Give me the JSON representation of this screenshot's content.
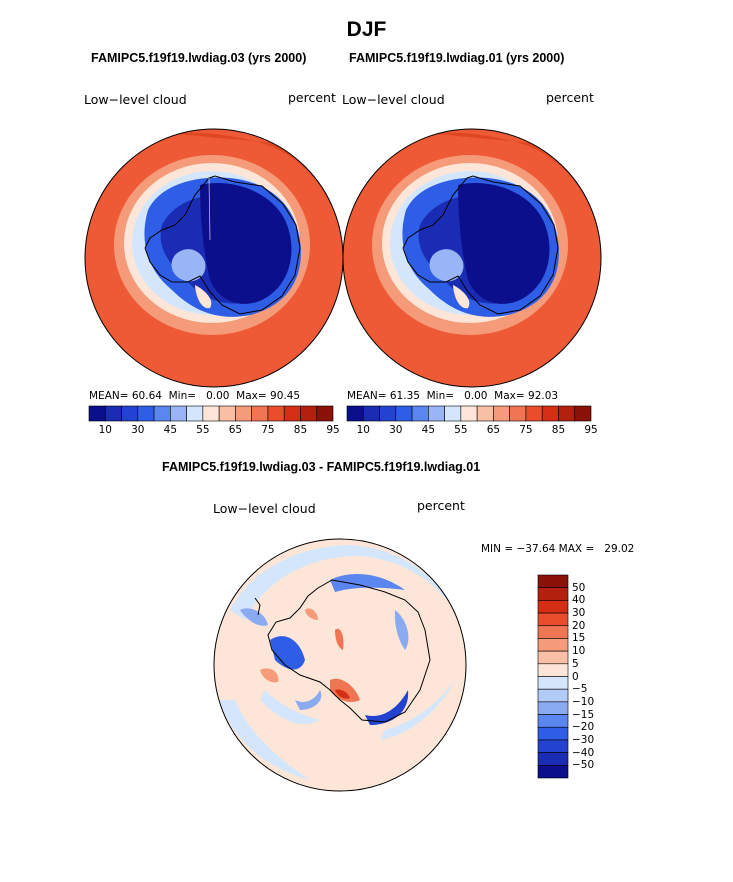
{
  "title": "DJF",
  "panels": [
    {
      "case_title": "FAMIPC5.f19f19.lwdiag.03 (yrs 2000)",
      "variable": "Low−level cloud",
      "units": "percent",
      "stats": {
        "mean_label": "MEAN=",
        "mean": "60.64",
        "min_label": "Min=",
        "min": "0.00",
        "max_label": "Max=",
        "max": "90.45"
      }
    },
    {
      "case_title": "FAMIPC5.f19f19.lwdiag.01 (yrs 2000)",
      "variable": "Low−level cloud",
      "units": "percent",
      "stats": {
        "mean_label": "MEAN=",
        "mean": "61.35",
        "min_label": "Min=",
        "min": "0.00",
        "max_label": "Max=",
        "max": "92.03"
      }
    }
  ],
  "colorbar": {
    "colors": [
      "#0b0f8c",
      "#1a2cb4",
      "#2342d0",
      "#2f5ee6",
      "#5b86f0",
      "#9ab5f5",
      "#d4e6fb",
      "#fde6d8",
      "#f9bfa5",
      "#f59b7a",
      "#f07552",
      "#e94d2c",
      "#d42f15",
      "#b3200e",
      "#8a1206"
    ],
    "tick_labels": [
      "10",
      "30",
      "45",
      "55",
      "65",
      "75",
      "85",
      "95"
    ]
  },
  "difference": {
    "case_title": "FAMIPC5.f19f19.lwdiag.03 - FAMIPC5.f19f19.lwdiag.01",
    "variable": "Low−level cloud",
    "units": "percent",
    "minmax_text": "MIN = −37.64 MAX =   29.02",
    "levels": [
      "50",
      "40",
      "30",
      "20",
      "15",
      "10",
      "5",
      "0",
      "−5",
      "−10",
      "−15",
      "−20",
      "−30",
      "−40",
      "−50"
    ],
    "colors": [
      "#8a1206",
      "#b3200e",
      "#d42f15",
      "#e94d2c",
      "#f07552",
      "#f59b7a",
      "#f9bfa5",
      "#fde6d8",
      "#d4e6fb",
      "#b2cbf7",
      "#8aaaf2",
      "#5b86f0",
      "#2f5ee6",
      "#2342d0",
      "#1a2cb4",
      "#0b0f8c"
    ]
  }
}
